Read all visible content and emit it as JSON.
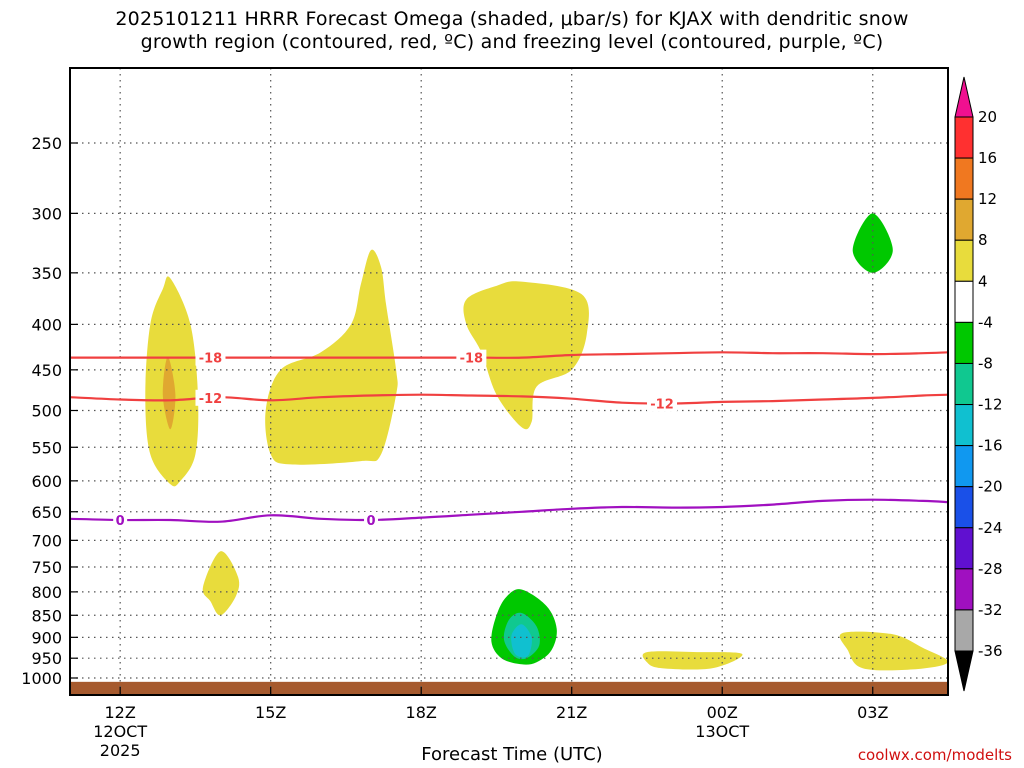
{
  "title_line1": "2025101211 HRRR Forecast Omega (shaded, μbar/s) for KJAX with dendritic snow",
  "title_line2": "growth region (contoured, red, ºC) and freezing level (contoured, purple, ºC)",
  "credit": "coolwx.com/modelts",
  "chart_data": {
    "type": "time-height cross section",
    "xlabel": "Forecast Time (UTC)",
    "ylabel": "",
    "y_scale": "log-pressure",
    "y_range_hPa": [
      1050,
      200
    ],
    "x_range_hours": [
      11,
      28.5
    ],
    "y_ticks": [
      250,
      300,
      350,
      400,
      450,
      500,
      550,
      600,
      650,
      700,
      750,
      800,
      850,
      900,
      950,
      1000
    ],
    "x_ticks": [
      {
        "hour": 12,
        "label": "12Z",
        "sub1": "12OCT",
        "sub2": "2025"
      },
      {
        "hour": 15,
        "label": "15Z",
        "sub1": "",
        "sub2": ""
      },
      {
        "hour": 18,
        "label": "18Z",
        "sub1": "",
        "sub2": ""
      },
      {
        "hour": 21,
        "label": "21Z",
        "sub1": "",
        "sub2": ""
      },
      {
        "hour": 24,
        "label": "00Z",
        "sub1": "13OCT",
        "sub2": ""
      },
      {
        "hour": 27,
        "label": "03Z",
        "sub1": "",
        "sub2": ""
      }
    ],
    "grid": "dotted",
    "colorbar": {
      "levels": [
        20,
        16,
        12,
        8,
        4,
        -4,
        -8,
        -12,
        -16,
        -20,
        -24,
        -28,
        -32,
        -36
      ],
      "colors": [
        "#ff3030",
        "#f07820",
        "#e0a830",
        "#e8dc3c",
        "#ffffff",
        "#00c800",
        "#10c890",
        "#10c0d0",
        "#1098f0",
        "#1a50e8",
        "#6010d0",
        "#a010c0",
        "#a8a8a8"
      ],
      "over_color": "#f01090",
      "under_color": "#000000"
    },
    "contours": [
      {
        "name": "dendritic-top",
        "color": "#f04040",
        "label": "-18",
        "label_hours": [
          13.8,
          19.0
        ],
        "points": [
          [
            11,
            436
          ],
          [
            12,
            436
          ],
          [
            13,
            436
          ],
          [
            14,
            436
          ],
          [
            15,
            436
          ],
          [
            16,
            436
          ],
          [
            17,
            436
          ],
          [
            18,
            436
          ],
          [
            19,
            436
          ],
          [
            20,
            436
          ],
          [
            21,
            433
          ],
          [
            22,
            432
          ],
          [
            23,
            431
          ],
          [
            24,
            430
          ],
          [
            25,
            431
          ],
          [
            26,
            431
          ],
          [
            27,
            432
          ],
          [
            28,
            431
          ],
          [
            28.5,
            430
          ]
        ]
      },
      {
        "name": "dendritic-bottom",
        "color": "#f04040",
        "label": "-12",
        "label_hours": [
          13.8,
          22.8
        ],
        "points": [
          [
            11,
            483
          ],
          [
            12,
            486
          ],
          [
            13,
            487
          ],
          [
            14,
            483
          ],
          [
            15,
            487
          ],
          [
            16,
            483
          ],
          [
            17,
            481
          ],
          [
            18,
            480
          ],
          [
            19,
            481
          ],
          [
            20,
            482
          ],
          [
            21,
            485
          ],
          [
            22,
            490
          ],
          [
            23,
            491
          ],
          [
            24,
            489
          ],
          [
            25,
            488
          ],
          [
            26,
            486
          ],
          [
            27,
            484
          ],
          [
            28,
            481
          ],
          [
            28.5,
            480
          ]
        ]
      },
      {
        "name": "freezing-level",
        "color": "#a010c0",
        "label": "0",
        "label_hours": [
          12.0,
          17.0
        ],
        "points": [
          [
            11,
            662
          ],
          [
            12,
            664
          ],
          [
            13,
            664
          ],
          [
            14,
            667
          ],
          [
            15,
            656
          ],
          [
            16,
            662
          ],
          [
            17,
            664
          ],
          [
            18,
            660
          ],
          [
            19,
            655
          ],
          [
            20,
            650
          ],
          [
            21,
            645
          ],
          [
            22,
            642
          ],
          [
            23,
            643
          ],
          [
            24,
            642
          ],
          [
            25,
            638
          ],
          [
            26,
            632
          ],
          [
            27,
            630
          ],
          [
            28,
            632
          ],
          [
            28.5,
            634
          ]
        ]
      }
    ],
    "shaded_regions": [
      {
        "value_range": [
          4,
          8
        ],
        "color": "#e8dc3c",
        "outline": [
          [
            13.0,
            355
          ],
          [
            13.4,
            400
          ],
          [
            13.55,
            480
          ],
          [
            13.5,
            560
          ],
          [
            13.2,
            600
          ],
          [
            13.0,
            605
          ],
          [
            12.6,
            560
          ],
          [
            12.5,
            480
          ],
          [
            12.6,
            400
          ],
          [
            12.85,
            365
          ]
        ]
      },
      {
        "value_range": [
          8,
          12
        ],
        "color": "#e0a830",
        "outline": [
          [
            12.95,
            435
          ],
          [
            13.1,
            480
          ],
          [
            13.0,
            525
          ],
          [
            12.85,
            480
          ]
        ]
      },
      {
        "value_range": [
          4,
          8
        ],
        "color": "#e8dc3c",
        "outline": [
          [
            17.0,
            330
          ],
          [
            17.2,
            345
          ],
          [
            17.3,
            380
          ],
          [
            17.5,
            450
          ],
          [
            17.5,
            480
          ],
          [
            17.2,
            560
          ],
          [
            16.8,
            570
          ],
          [
            15.4,
            575
          ],
          [
            15.0,
            560
          ],
          [
            14.9,
            500
          ],
          [
            15.2,
            450
          ],
          [
            16.0,
            430
          ],
          [
            16.6,
            400
          ],
          [
            16.8,
            360
          ]
        ]
      },
      {
        "value_range": [
          4,
          8
        ],
        "color": "#e8dc3c",
        "outline": [
          [
            20.0,
            358
          ],
          [
            21.2,
            370
          ],
          [
            21.3,
            410
          ],
          [
            21.0,
            450
          ],
          [
            20.3,
            470
          ],
          [
            20.2,
            515
          ],
          [
            20.0,
            522
          ],
          [
            19.5,
            480
          ],
          [
            19.2,
            430
          ],
          [
            18.9,
            400
          ],
          [
            18.9,
            375
          ],
          [
            19.5,
            362
          ]
        ]
      },
      {
        "value_range": [
          4,
          8
        ],
        "color": "#e8dc3c",
        "outline": [
          [
            14.0,
            720
          ],
          [
            14.35,
            770
          ],
          [
            14.3,
            810
          ],
          [
            14.0,
            850
          ],
          [
            13.8,
            820
          ],
          [
            13.65,
            790
          ]
        ]
      },
      {
        "value_range": [
          -8,
          -4
        ],
        "color": "#00c800",
        "outline": [
          [
            20.0,
            795
          ],
          [
            20.5,
            830
          ],
          [
            20.7,
            880
          ],
          [
            20.6,
            930
          ],
          [
            20.3,
            960
          ],
          [
            20.0,
            965
          ],
          [
            19.6,
            950
          ],
          [
            19.4,
            910
          ],
          [
            19.5,
            850
          ],
          [
            19.7,
            810
          ]
        ]
      },
      {
        "value_range": [
          -12,
          -8
        ],
        "color": "#10c890",
        "outline": [
          [
            20.0,
            845
          ],
          [
            20.3,
            875
          ],
          [
            20.35,
            920
          ],
          [
            20.1,
            950
          ],
          [
            19.85,
            945
          ],
          [
            19.65,
            905
          ],
          [
            19.75,
            860
          ]
        ]
      },
      {
        "value_range": [
          -16,
          -12
        ],
        "color": "#10c0d0",
        "outline": [
          [
            20.0,
            870
          ],
          [
            20.2,
            900
          ],
          [
            20.15,
            940
          ],
          [
            20.0,
            948
          ],
          [
            19.85,
            935
          ],
          [
            19.8,
            895
          ]
        ]
      },
      {
        "value_range": [
          4,
          8
        ],
        "color": "#e8dc3c",
        "outline": [
          [
            22.5,
            935
          ],
          [
            23.5,
            935
          ],
          [
            24.4,
            940
          ],
          [
            23.8,
            975
          ],
          [
            22.8,
            975
          ],
          [
            22.5,
            960
          ]
        ]
      },
      {
        "value_range": [
          4,
          8
        ],
        "color": "#e8dc3c",
        "outline": [
          [
            26.4,
            890
          ],
          [
            27.4,
            893
          ],
          [
            28.0,
            925
          ],
          [
            28.5,
            960
          ],
          [
            27.8,
            978
          ],
          [
            26.8,
            975
          ],
          [
            26.5,
            930
          ]
        ]
      },
      {
        "value_range": [
          -8,
          -4
        ],
        "color": "#00c800",
        "outline": [
          [
            27.0,
            300
          ],
          [
            27.4,
            330
          ],
          [
            27.0,
            350
          ],
          [
            26.6,
            330
          ]
        ]
      }
    ],
    "ground": {
      "color": "#a65a2e",
      "top_hPa": 1010
    }
  }
}
